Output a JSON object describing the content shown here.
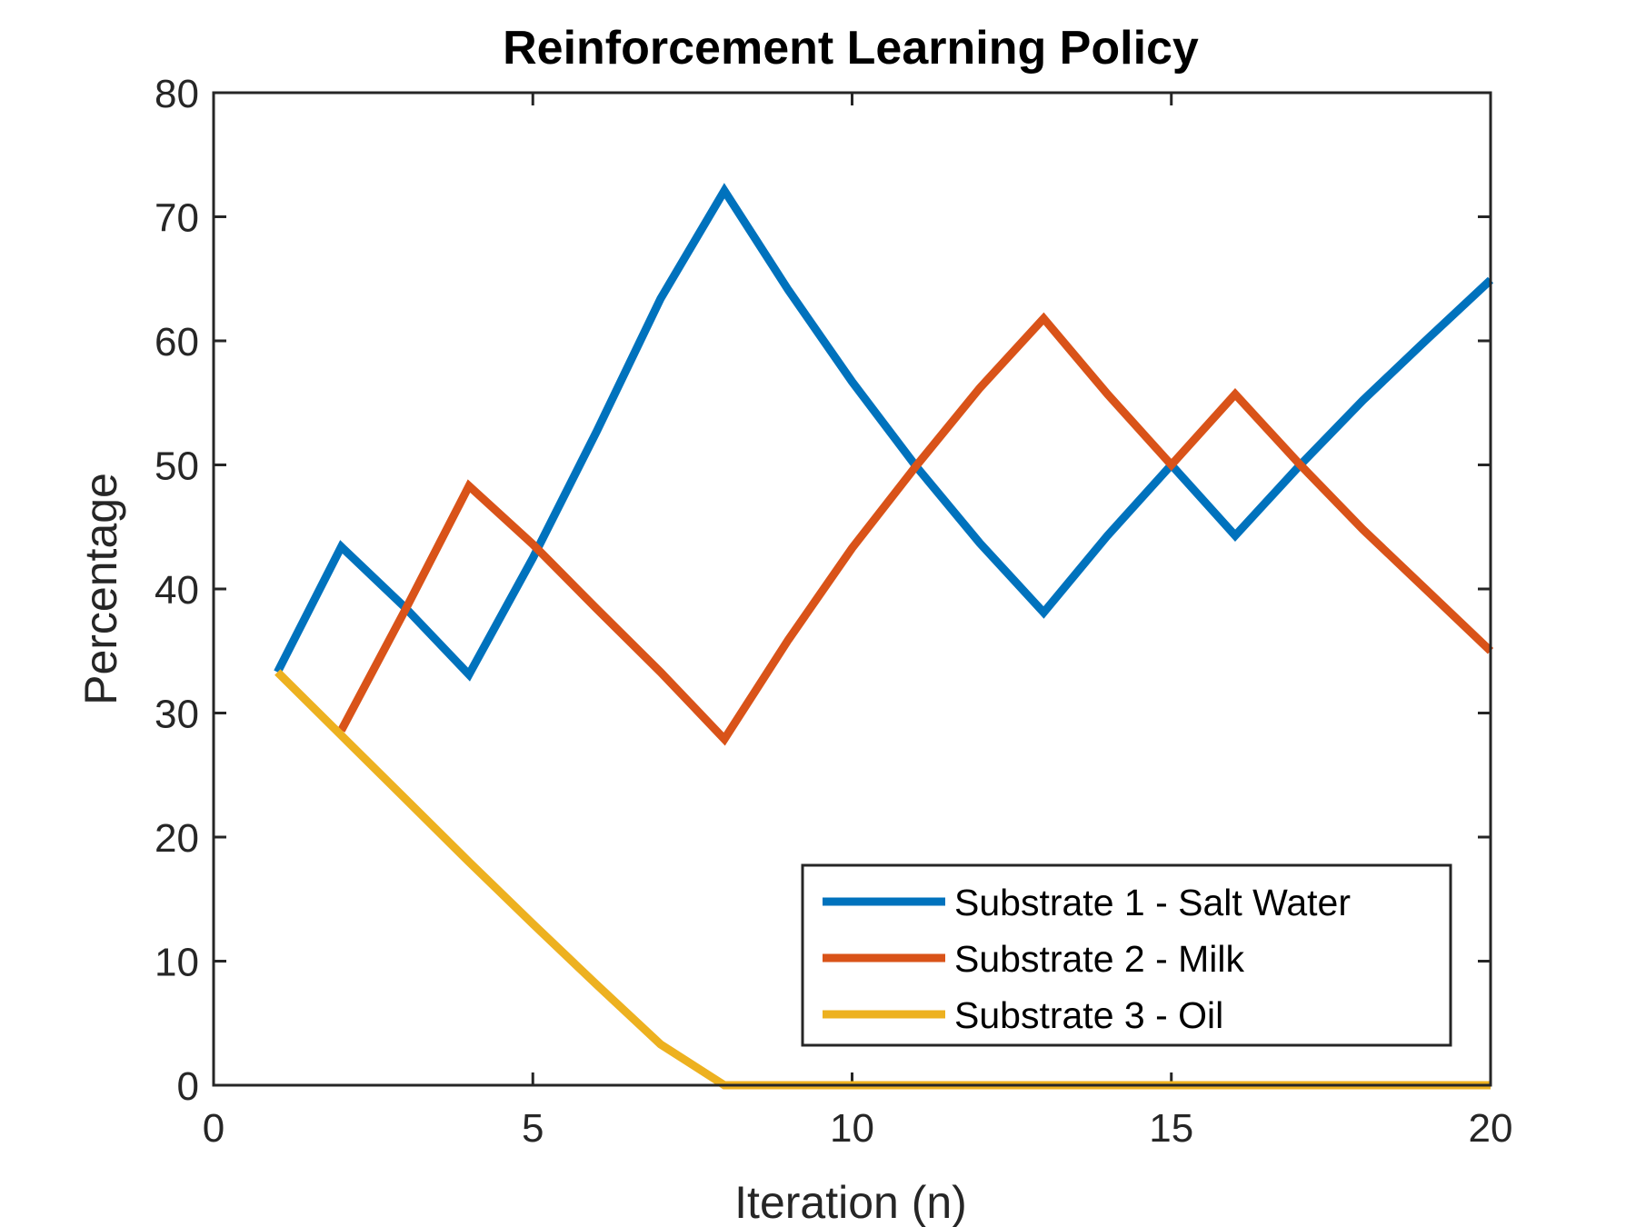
{
  "chart_data": {
    "type": "line",
    "title": "Reinforcement Learning Policy",
    "xlabel": "Iteration (n)",
    "ylabel": "Percentage",
    "xlim": [
      0,
      20
    ],
    "ylim": [
      0,
      80
    ],
    "xticks": [
      0,
      5,
      10,
      15,
      20
    ],
    "yticks": [
      0,
      10,
      20,
      30,
      40,
      50,
      60,
      70,
      80
    ],
    "grid": false,
    "legend_position": "bottom-right",
    "series": [
      {
        "name": "Substrate 1 - Salt Water",
        "color": "#0072BD",
        "x": [
          1,
          2,
          3,
          4,
          5,
          6,
          7,
          8,
          9,
          10,
          11,
          12,
          13,
          14,
          15,
          16,
          17,
          18,
          19,
          20
        ],
        "y": [
          33.3,
          43.4,
          38.5,
          33.1,
          42.5,
          52.7,
          63.4,
          72.1,
          64.1,
          56.7,
          49.9,
          43.7,
          38.1,
          44.3,
          50.0,
          44.3,
          49.9,
          55.2,
          60.1,
          64.9
        ]
      },
      {
        "name": "Substrate 2 - Milk",
        "color": "#D95319",
        "x": [
          2,
          3,
          4,
          5,
          6,
          7,
          8,
          9,
          10,
          11,
          12,
          13,
          14,
          15,
          16,
          17,
          18,
          19,
          20
        ],
        "y": [
          28.6,
          38.3,
          48.3,
          43.6,
          38.4,
          33.3,
          27.9,
          35.9,
          43.3,
          49.9,
          56.2,
          61.8,
          55.7,
          50.0,
          55.7,
          50.1,
          44.8,
          39.9,
          35.0
        ]
      },
      {
        "name": "Substrate 3 - Oil",
        "color": "#EDB120",
        "x": [
          1,
          2,
          3,
          4,
          5,
          6,
          7,
          8,
          9,
          10,
          11,
          12,
          13,
          14,
          15,
          16,
          17,
          18,
          19,
          20
        ],
        "y": [
          33.3,
          28.2,
          23.1,
          18.0,
          13.0,
          8.1,
          3.3,
          0,
          0,
          0,
          0,
          0,
          0,
          0,
          0,
          0,
          0,
          0,
          0,
          0
        ]
      }
    ]
  }
}
